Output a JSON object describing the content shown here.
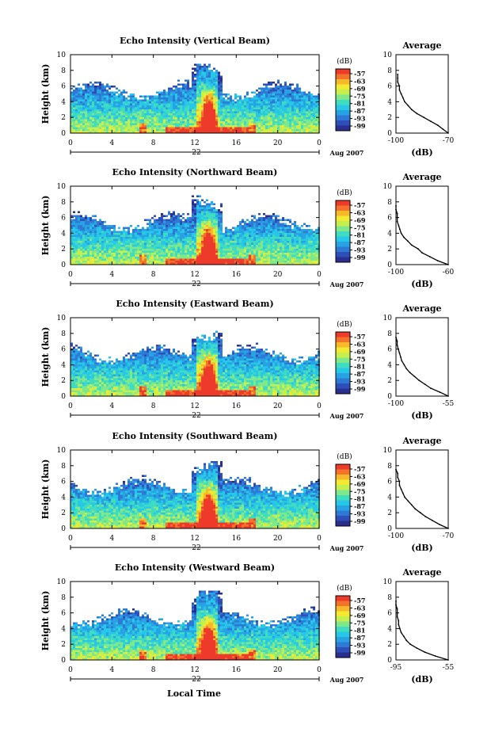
{
  "colors": {
    "colorbar": [
      "#2a2f8f",
      "#2f4fb8",
      "#2f79d6",
      "#27a3e3",
      "#27c7e8",
      "#3fdcc0",
      "#7fe88a",
      "#c4ef4f",
      "#f1ea31",
      "#f7b82a",
      "#f4732a",
      "#ee3a2a"
    ],
    "background": "#ffffff",
    "axis": "#000000"
  },
  "colorbar": {
    "label": "(dB)",
    "ticks": [
      "-57",
      "-63",
      "-69",
      "-75",
      "-81",
      "-87",
      "-93",
      "-99"
    ]
  },
  "common": {
    "xlabel": "Local Time",
    "day": "22",
    "date": "Aug 2007",
    "side_title": "Average",
    "side_xlabel": "(dB)",
    "ylabel": "Height (km)"
  },
  "chart_data": [
    {
      "type": "heatmap",
      "title": "Echo Intensity (Vertical Beam)",
      "xlabel": "Local Time",
      "ylabel": "Height (km)",
      "xlim": [
        0,
        24
      ],
      "ylim": [
        0,
        10
      ],
      "xticks": [
        "0",
        "4",
        "8",
        "12",
        "16",
        "20",
        "0"
      ],
      "yticks": [
        "0",
        "2",
        "4",
        "6",
        "8",
        "10"
      ],
      "zlim": [
        -99,
        -57
      ],
      "profile": {
        "type": "line",
        "title": "Average",
        "xlabel": "(dB)",
        "xlim": [
          -100,
          -70
        ],
        "xticks": [
          "-100",
          "-70"
        ],
        "x": [
          -70,
          -73,
          -76,
          -80,
          -84,
          -88,
          -91,
          -93,
          -95,
          -96,
          -97,
          -98,
          -98,
          -99,
          -99,
          -99
        ],
        "y": [
          0,
          0.5,
          1,
          1.5,
          2,
          2.5,
          3,
          3.5,
          4,
          4.5,
          5,
          5.5,
          6,
          6.5,
          7,
          7.5
        ]
      }
    },
    {
      "type": "heatmap",
      "title": "Echo Intensity (Northward Beam)",
      "xlabel": "Local Time",
      "ylabel": "Height (km)",
      "xlim": [
        0,
        24
      ],
      "ylim": [
        0,
        10
      ],
      "xticks": [
        "0",
        "4",
        "8",
        "12",
        "16",
        "20",
        "0"
      ],
      "yticks": [
        "0",
        "2",
        "4",
        "6",
        "8",
        "10"
      ],
      "zlim": [
        -99,
        -57
      ],
      "profile": {
        "type": "line",
        "title": "Average",
        "xlabel": "(dB)",
        "xlim": [
          -100,
          -60
        ],
        "xticks": [
          "-100",
          "-60"
        ],
        "x": [
          -60,
          -68,
          -74,
          -80,
          -83,
          -88,
          -91,
          -94,
          -96,
          -97,
          -98,
          -99,
          -99,
          -99,
          -100,
          -100
        ],
        "y": [
          0,
          0.5,
          1,
          1.5,
          2,
          2.5,
          3,
          3.5,
          4,
          4.5,
          5,
          5.5,
          6,
          6.5,
          7,
          7.5
        ]
      }
    },
    {
      "type": "heatmap",
      "title": "Echo Intensity (Eastward Beam)",
      "xlabel": "Local Time",
      "ylabel": "Height (km)",
      "xlim": [
        0,
        24
      ],
      "ylim": [
        0,
        10
      ],
      "xticks": [
        "0",
        "4",
        "8",
        "12",
        "16",
        "20",
        "0"
      ],
      "yticks": [
        "0",
        "2",
        "4",
        "6",
        "8",
        "10"
      ],
      "zlim": [
        -99,
        -57
      ],
      "profile": {
        "type": "line",
        "title": "Average",
        "xlabel": "(dB)",
        "xlim": [
          -100,
          -55
        ],
        "xticks": [
          "-100",
          "-55"
        ],
        "x": [
          -55,
          -62,
          -70,
          -75,
          -80,
          -84,
          -88,
          -91,
          -93,
          -95,
          -96,
          -97,
          -98,
          -99,
          -99,
          -100
        ],
        "y": [
          0,
          0.5,
          1,
          1.5,
          2,
          2.5,
          3,
          3.5,
          4,
          4.5,
          5,
          5.5,
          6,
          6.5,
          7,
          7.5
        ]
      }
    },
    {
      "type": "heatmap",
      "title": "Echo Intensity (Southward Beam)",
      "xlabel": "Local Time",
      "ylabel": "Height (km)",
      "xlim": [
        0,
        24
      ],
      "ylim": [
        0,
        10
      ],
      "xticks": [
        "0",
        "4",
        "8",
        "12",
        "16",
        "20",
        "0"
      ],
      "yticks": [
        "0",
        "2",
        "4",
        "6",
        "8",
        "10"
      ],
      "zlim": [
        -99,
        -57
      ],
      "profile": {
        "type": "line",
        "title": "Average",
        "xlabel": "(dB)",
        "xlim": [
          -100,
          -70
        ],
        "xticks": [
          "-100",
          "-70"
        ],
        "x": [
          -70,
          -75,
          -79,
          -83,
          -86,
          -89,
          -91,
          -93,
          -95,
          -96,
          -97,
          -98,
          -98,
          -99,
          -99,
          -100
        ],
        "y": [
          0,
          0.5,
          1,
          1.5,
          2,
          2.5,
          3,
          3.5,
          4,
          4.5,
          5,
          5.5,
          6,
          6.5,
          7,
          7.5
        ]
      }
    },
    {
      "type": "heatmap",
      "title": "Echo Intensity (Westward Beam)",
      "xlabel": "Local Time",
      "ylabel": "Height (km)",
      "xlim": [
        0,
        24
      ],
      "ylim": [
        0,
        10
      ],
      "xticks": [
        "0",
        "4",
        "8",
        "12",
        "16",
        "20",
        "0"
      ],
      "yticks": [
        "0",
        "2",
        "4",
        "6",
        "8",
        "10"
      ],
      "zlim": [
        -99,
        -57
      ],
      "profile": {
        "type": "line",
        "title": "Average",
        "xlabel": "(dB)",
        "xlim": [
          -95,
          -55
        ],
        "xticks": [
          "-95",
          "-55"
        ],
        "x": [
          -55,
          -65,
          -73,
          -79,
          -84,
          -87,
          -89,
          -91,
          -92,
          -93,
          -93,
          -94,
          -94,
          -94,
          -95,
          -95
        ],
        "y": [
          0,
          0.5,
          1,
          1.5,
          2,
          2.5,
          3,
          3.5,
          4,
          4.5,
          5,
          5.5,
          6,
          6.5,
          7,
          7.5
        ]
      }
    }
  ]
}
